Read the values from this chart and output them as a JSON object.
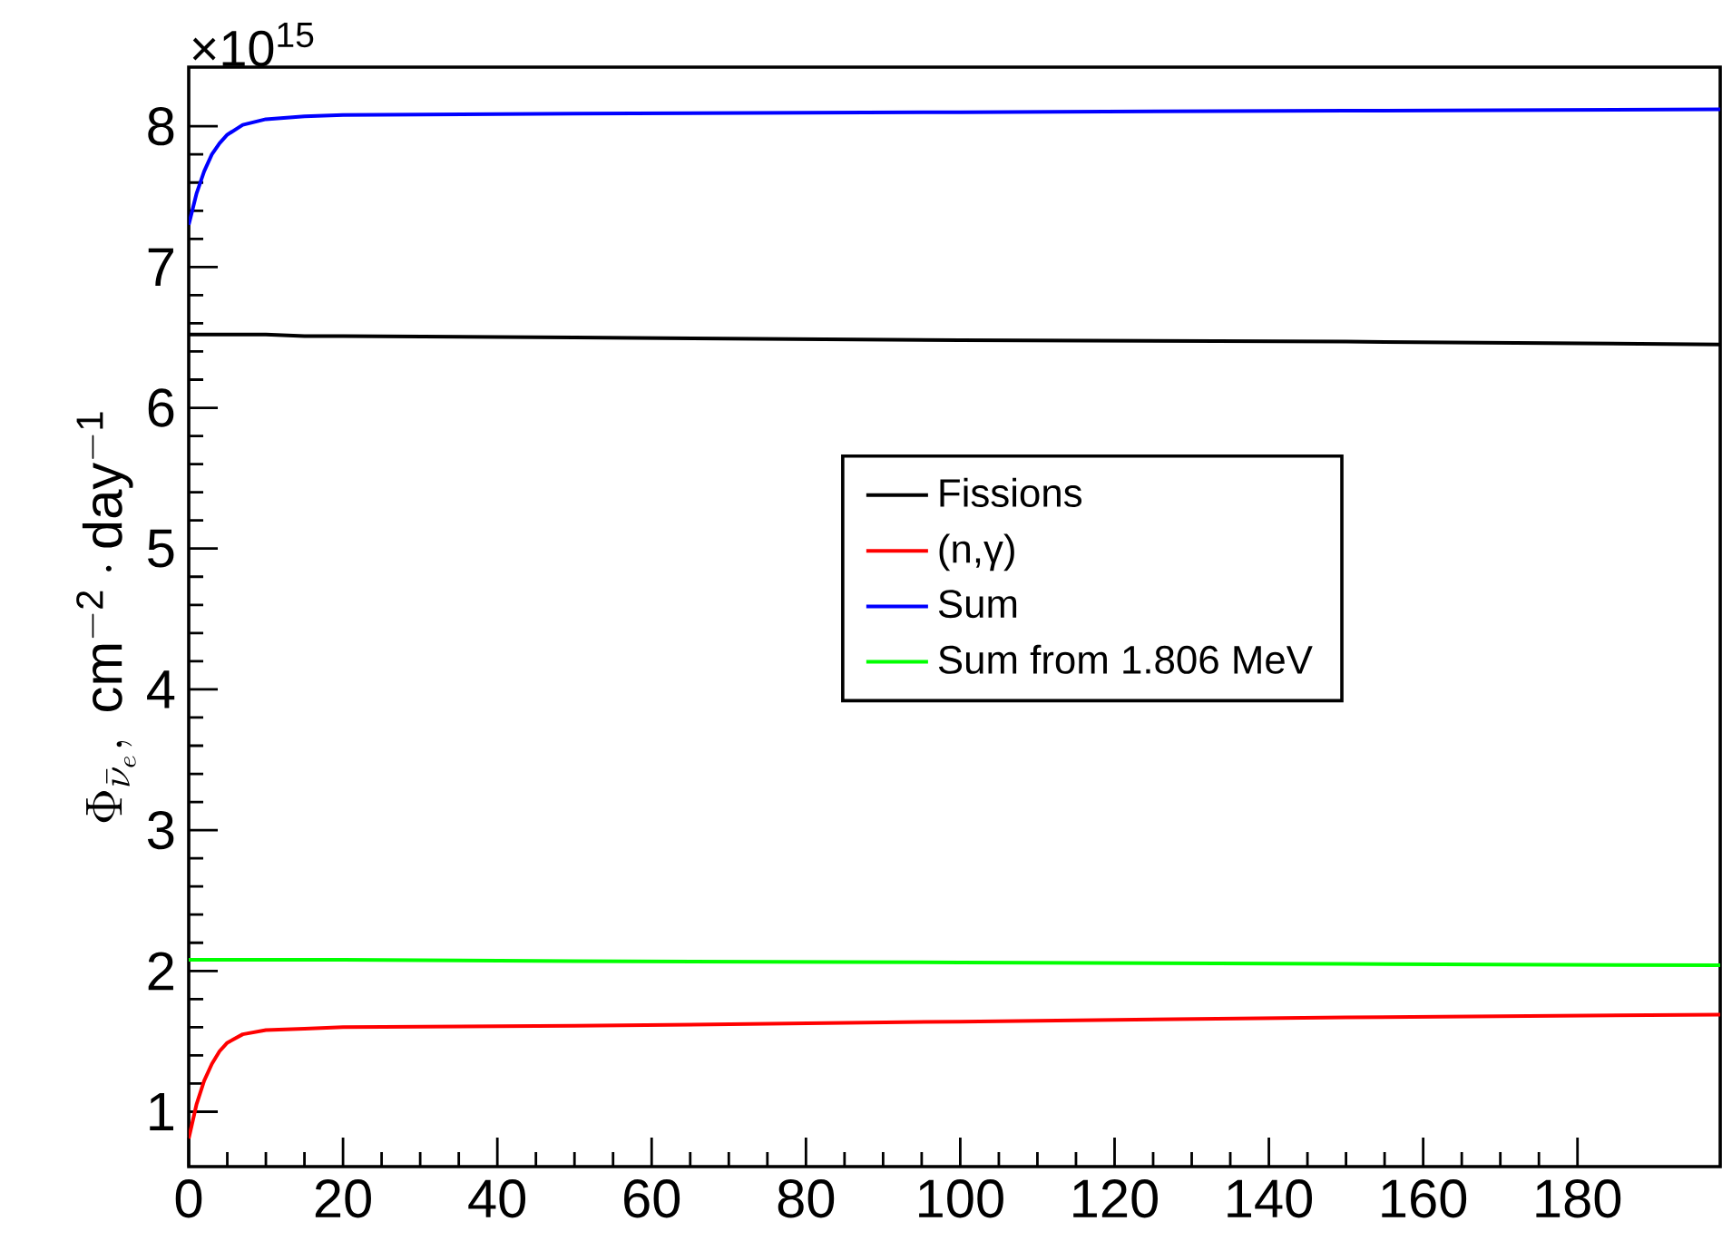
{
  "chart_data": {
    "type": "line",
    "ylabel": "\\Phi_{\\bar{\\nu}_e},\\ \\mathrm{cm^{-2}\\cdot day^{-1}}",
    "annotations": [
      "×10$^{15}$"
    ],
    "x": [
      0,
      1,
      2,
      3,
      4,
      5,
      7,
      10,
      15,
      20,
      50,
      100,
      150,
      198.5
    ],
    "series": [
      {
        "name": "Fissions",
        "color": "#000000",
        "values": [
          6.52,
          6.52,
          6.52,
          6.52,
          6.52,
          6.52,
          6.52,
          6.52,
          6.51,
          6.51,
          6.5,
          6.48,
          6.47,
          6.45
        ]
      },
      {
        "name": "(n,γ)",
        "color": "#ff0000",
        "values": [
          0.81,
          1.05,
          1.22,
          1.34,
          1.43,
          1.49,
          1.55,
          1.58,
          1.59,
          1.6,
          1.61,
          1.64,
          1.67,
          1.69
        ]
      },
      {
        "name": "Sum",
        "color": "#0000ff",
        "values": [
          7.3,
          7.52,
          7.68,
          7.8,
          7.88,
          7.94,
          8.01,
          8.05,
          8.07,
          8.08,
          8.09,
          8.1,
          8.11,
          8.12
        ]
      },
      {
        "name": "Sum from 1.806 MeV",
        "color": "#00ff00",
        "values": [
          2.08,
          2.08,
          2.08,
          2.08,
          2.08,
          2.08,
          2.08,
          2.08,
          2.08,
          2.08,
          2.07,
          2.06,
          2.05,
          2.04
        ]
      }
    ],
    "xlim": [
      0,
      198.5
    ],
    "ylim": [
      0.61,
      8.42
    ],
    "xticks": [
      0,
      20,
      40,
      60,
      80,
      100,
      120,
      140,
      160,
      180
    ],
    "yticks": [
      1,
      2,
      3,
      4,
      5,
      6,
      7,
      8
    ],
    "legend": "center"
  }
}
